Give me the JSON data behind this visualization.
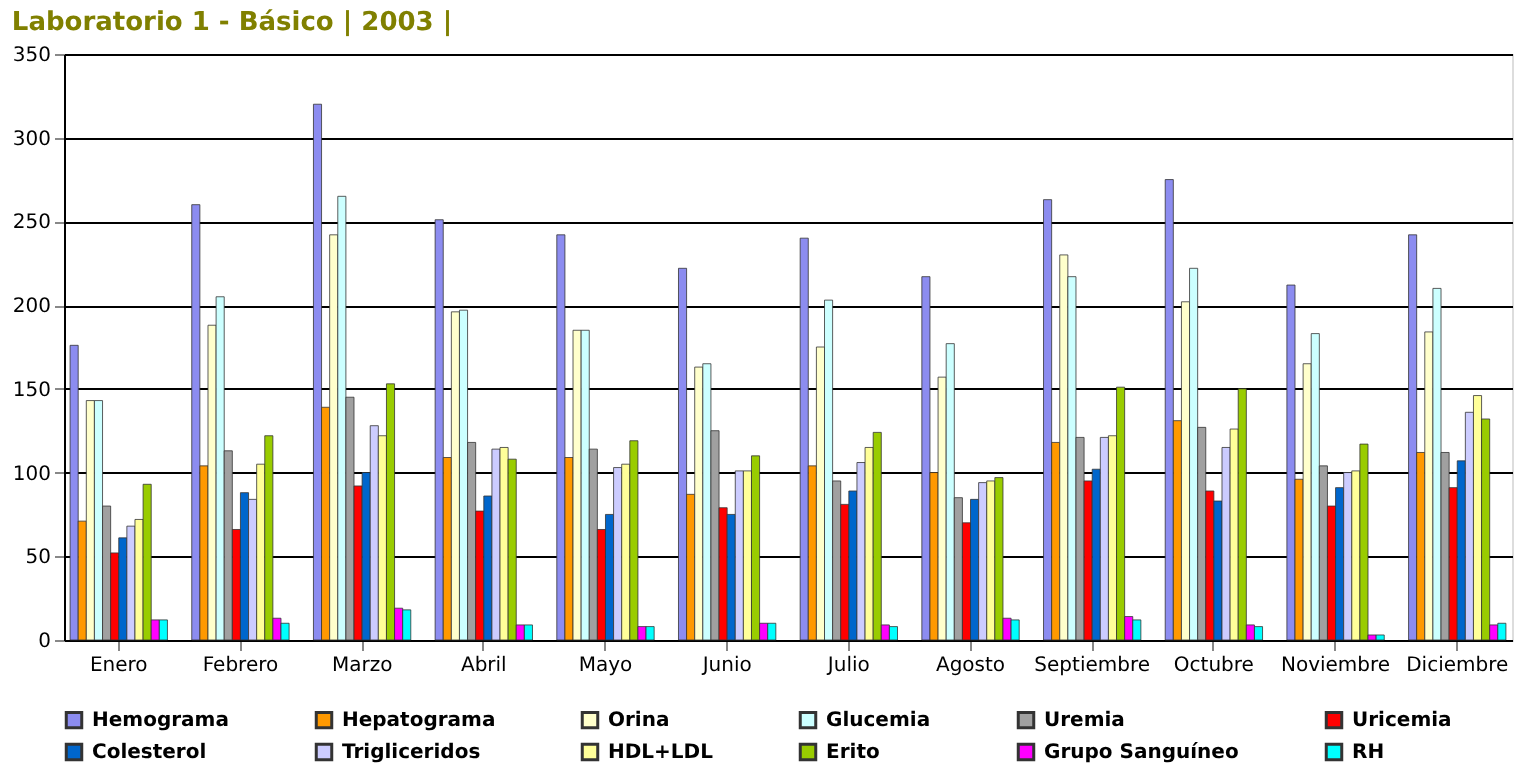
{
  "chart_data": {
    "type": "bar",
    "title": "Laboratorio 1 -  Básico | 2003 |",
    "categories": [
      "Enero",
      "Febrero",
      "Marzo",
      "Abril",
      "Mayo",
      "Junio",
      "Julio",
      "Agosto",
      "Septiembre",
      "Octubre",
      "Noviembre",
      "Diciembre"
    ],
    "series": [
      {
        "name": "Hemograma",
        "color": "#8c8cf0",
        "values": [
          176,
          260,
          320,
          251,
          242,
          222,
          240,
          217,
          263,
          275,
          212,
          242
        ]
      },
      {
        "name": "Hepatograma",
        "color": "#ff9900",
        "values": [
          71,
          104,
          139,
          109,
          109,
          87,
          104,
          100,
          118,
          131,
          96,
          112
        ]
      },
      {
        "name": "Orina",
        "color": "#ffffcc",
        "values": [
          143,
          188,
          242,
          196,
          185,
          163,
          175,
          157,
          230,
          202,
          165,
          184
        ]
      },
      {
        "name": "Glucemia",
        "color": "#ccffff",
        "values": [
          143,
          205,
          265,
          197,
          185,
          165,
          203,
          177,
          217,
          222,
          183,
          210
        ]
      },
      {
        "name": "Uremia",
        "color": "#a0a0a0",
        "values": [
          80,
          113,
          145,
          118,
          114,
          125,
          95,
          85,
          121,
          127,
          104,
          112
        ]
      },
      {
        "name": "Uricemia",
        "color": "#ff0000",
        "values": [
          52,
          66,
          92,
          77,
          66,
          79,
          81,
          70,
          95,
          89,
          80,
          91
        ]
      },
      {
        "name": "Colesterol",
        "color": "#0066cc",
        "values": [
          61,
          88,
          100,
          86,
          75,
          75,
          89,
          84,
          102,
          83,
          91,
          107
        ]
      },
      {
        "name": "Trigliceridos",
        "color": "#ccccff",
        "values": [
          68,
          84,
          128,
          114,
          103,
          101,
          106,
          94,
          121,
          115,
          100,
          136
        ]
      },
      {
        "name": "HDL+LDL",
        "color": "#ffff99",
        "values": [
          72,
          105,
          122,
          115,
          105,
          101,
          115,
          95,
          122,
          126,
          101,
          146
        ]
      },
      {
        "name": "Erito",
        "color": "#99cc00",
        "values": [
          93,
          122,
          153,
          108,
          119,
          110,
          124,
          97,
          151,
          150,
          117,
          132
        ]
      },
      {
        "name": "Grupo Sanguíneo",
        "color": "#ff00ff",
        "values": [
          12,
          13,
          19,
          9,
          8,
          10,
          9,
          13,
          14,
          9,
          3,
          9
        ]
      },
      {
        "name": "RH",
        "color": "#00ffff",
        "values": [
          12,
          10,
          18,
          9,
          8,
          10,
          8,
          12,
          12,
          8,
          3,
          10
        ]
      }
    ],
    "ylim": [
      0,
      350
    ],
    "yticks": [
      0,
      50,
      100,
      150,
      200,
      250,
      300,
      350
    ],
    "grid": "y",
    "legend": "bottom"
  }
}
